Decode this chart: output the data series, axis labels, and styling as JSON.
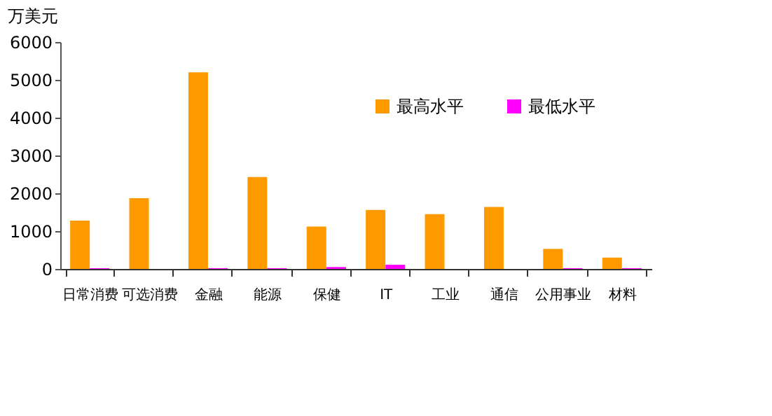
{
  "chart_data": {
    "type": "bar",
    "ylabel": "万美元",
    "categories": [
      "日常消费",
      "可选消费",
      "金融",
      "能源",
      "保健",
      "IT",
      "工业",
      "通信",
      "公用事业",
      "材料"
    ],
    "series": [
      {
        "name": "最高水平",
        "color": "#ff9900",
        "values": [
          1280,
          1870,
          5200,
          2430,
          1120,
          1560,
          1450,
          1640,
          530,
          300
        ]
      },
      {
        "name": "最低水平",
        "color": "#ff00ff",
        "values": [
          20,
          0,
          20,
          20,
          50,
          110,
          0,
          0,
          20,
          20
        ]
      }
    ],
    "ylim": [
      0,
      6000
    ],
    "yticks": [
      0,
      1000,
      2000,
      3000,
      4000,
      5000,
      6000
    ],
    "grid": false,
    "legend": "top right"
  }
}
